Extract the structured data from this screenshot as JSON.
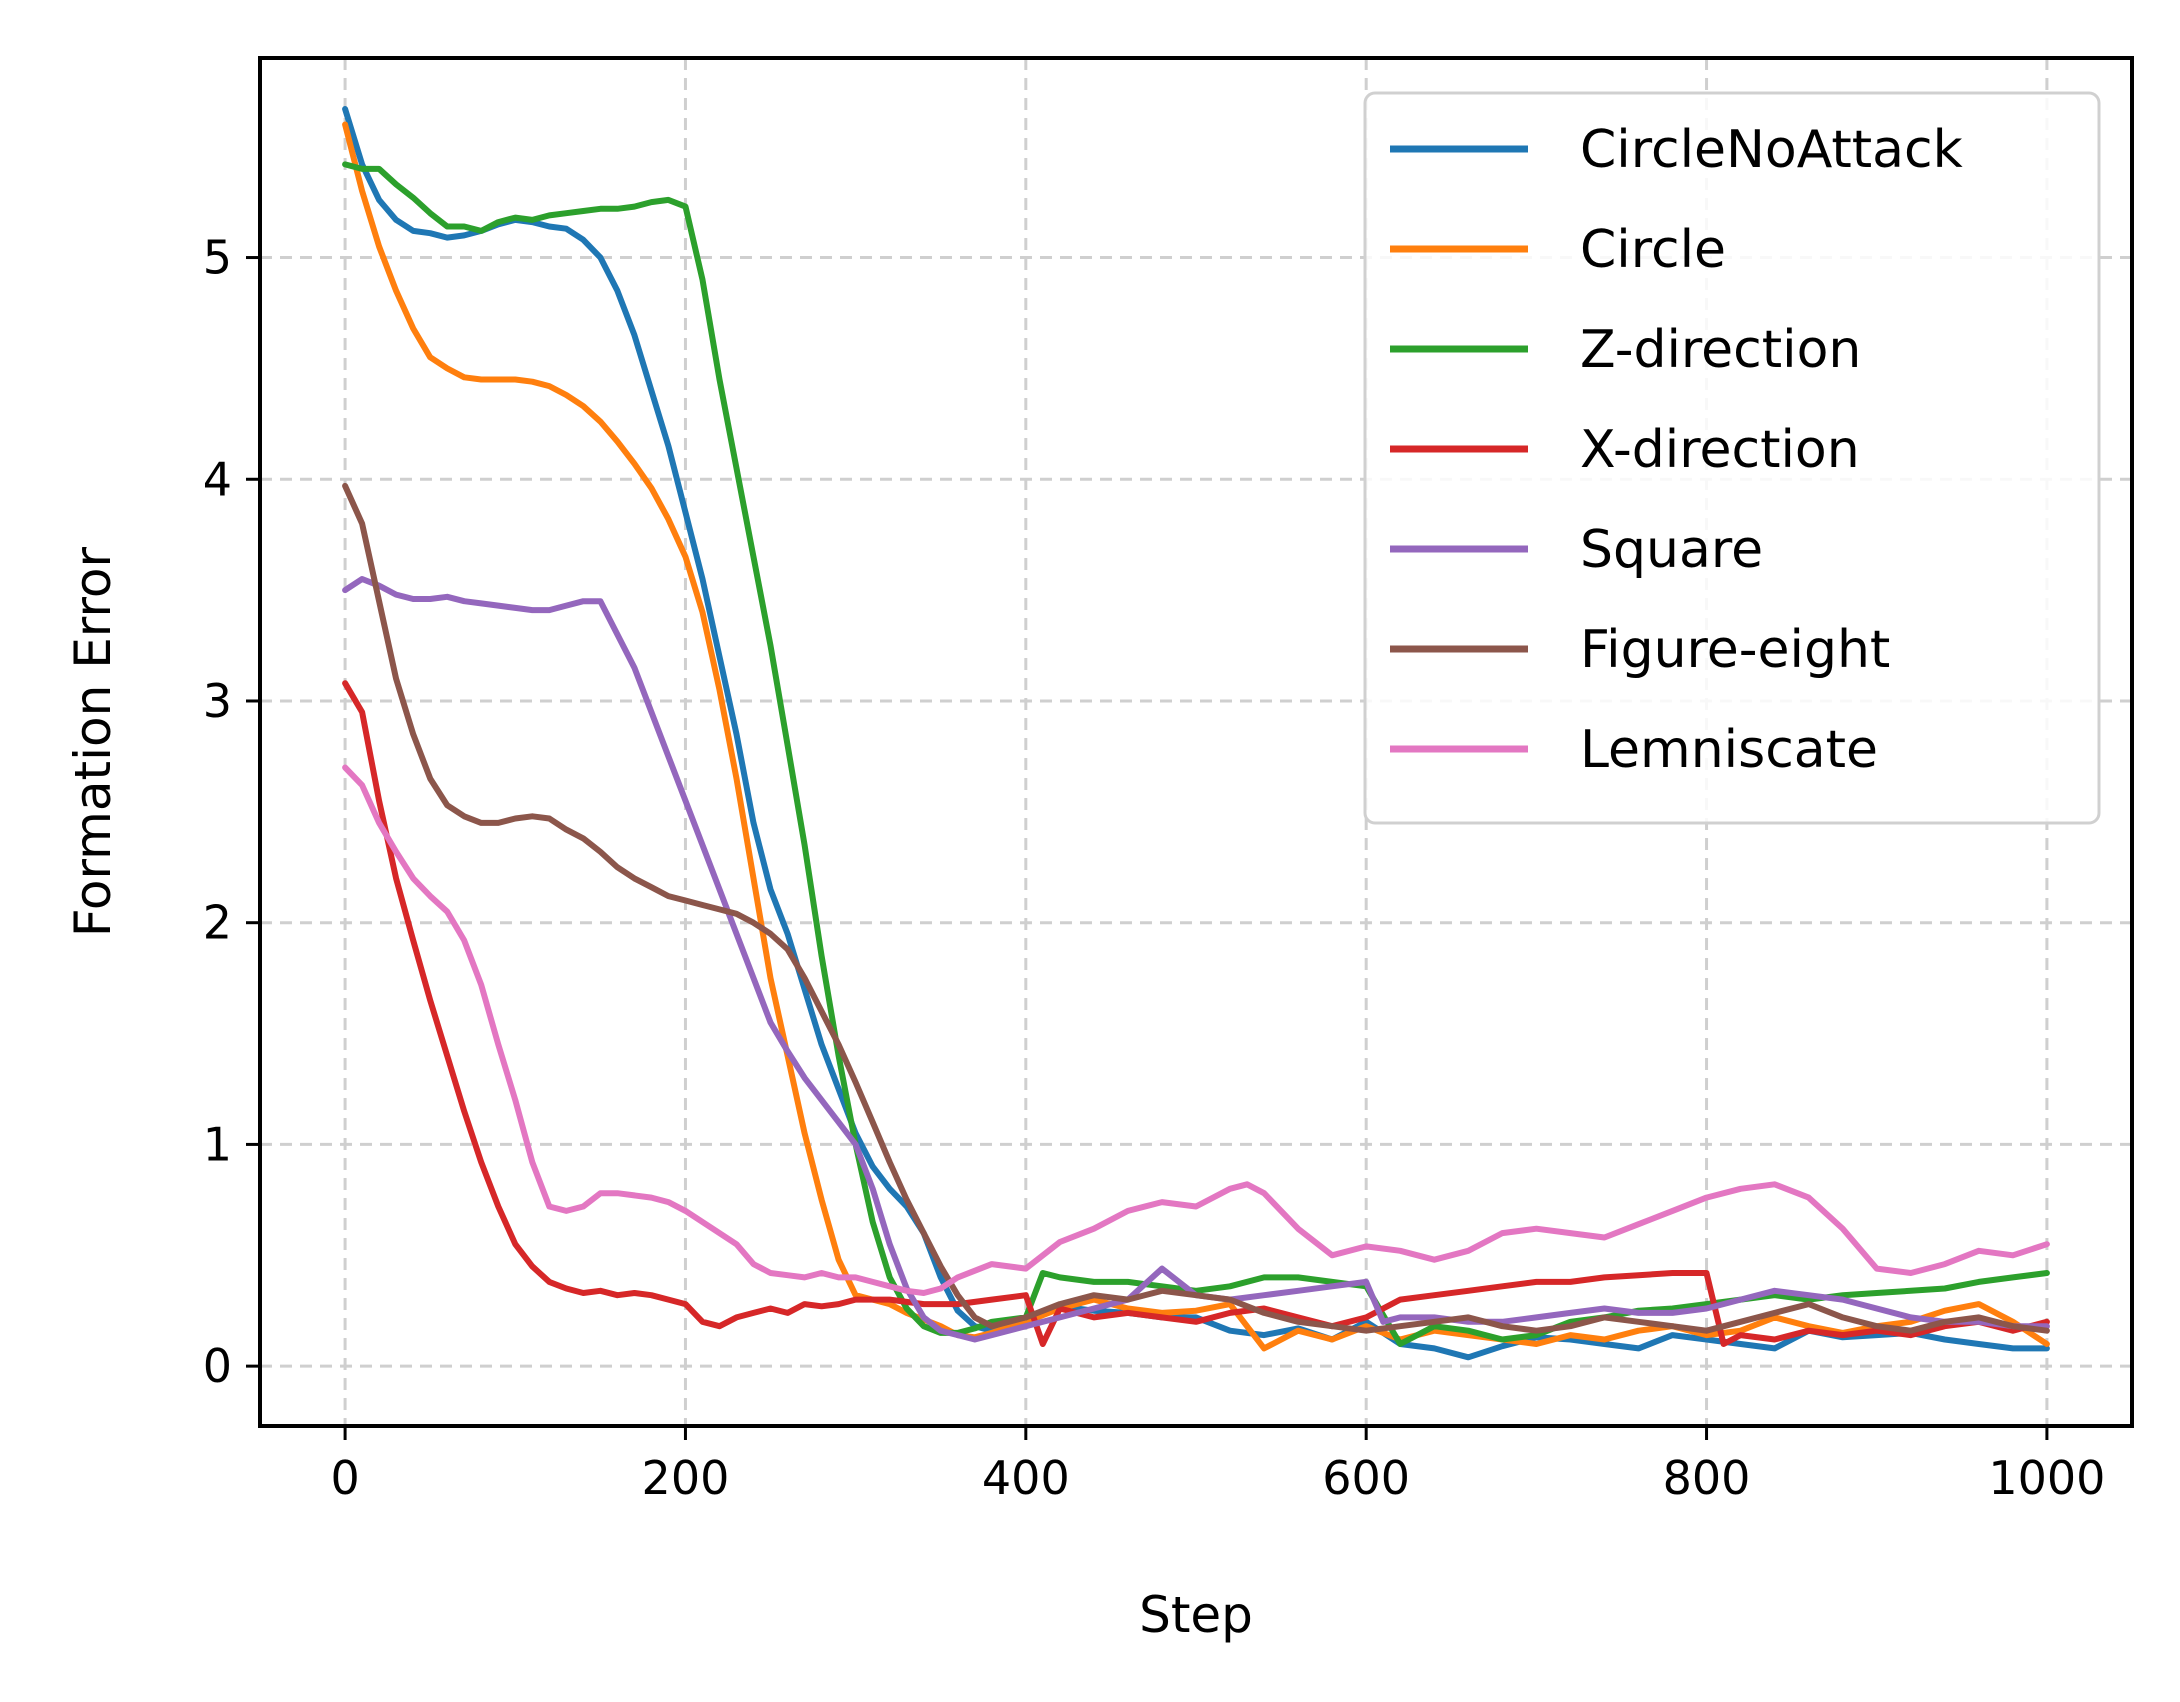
{
  "chart_data": {
    "type": "line",
    "title": "",
    "xlabel": "Step",
    "ylabel": "Formation Error",
    "xlim": [
      -50,
      1050
    ],
    "ylim": [
      -0.27,
      5.9
    ],
    "xticks": [
      0,
      200,
      400,
      600,
      800,
      1000
    ],
    "yticks": [
      0,
      1,
      2,
      3,
      4,
      5
    ],
    "grid": true,
    "legend": "top-right",
    "series": [
      {
        "name": "CircleNoAttack",
        "color": "#1f77b4",
        "x": [
          0,
          10,
          20,
          30,
          40,
          50,
          60,
          70,
          80,
          90,
          100,
          110,
          120,
          130,
          140,
          150,
          160,
          170,
          180,
          190,
          200,
          210,
          220,
          230,
          240,
          250,
          260,
          270,
          280,
          290,
          300,
          310,
          320,
          330,
          340,
          350,
          360,
          370,
          380,
          400,
          420,
          440,
          460,
          480,
          500,
          520,
          540,
          560,
          580,
          600,
          620,
          640,
          660,
          680,
          700,
          720,
          740,
          760,
          780,
          800,
          820,
          840,
          860,
          880,
          900,
          920,
          940,
          960,
          980,
          1000
        ],
        "y": [
          5.67,
          5.42,
          5.26,
          5.17,
          5.12,
          5.11,
          5.09,
          5.1,
          5.12,
          5.15,
          5.17,
          5.16,
          5.14,
          5.13,
          5.08,
          5.0,
          4.85,
          4.65,
          4.4,
          4.15,
          3.85,
          3.55,
          3.2,
          2.85,
          2.45,
          2.15,
          1.95,
          1.7,
          1.45,
          1.25,
          1.05,
          0.9,
          0.8,
          0.72,
          0.6,
          0.4,
          0.25,
          0.18,
          0.16,
          0.22,
          0.27,
          0.25,
          0.24,
          0.22,
          0.22,
          0.16,
          0.14,
          0.17,
          0.12,
          0.2,
          0.1,
          0.08,
          0.04,
          0.09,
          0.13,
          0.12,
          0.1,
          0.08,
          0.14,
          0.12,
          0.1,
          0.08,
          0.16,
          0.13,
          0.14,
          0.15,
          0.12,
          0.1,
          0.08,
          0.08
        ]
      },
      {
        "name": "Circle",
        "color": "#ff7f0e",
        "x": [
          0,
          10,
          20,
          30,
          40,
          50,
          60,
          70,
          80,
          90,
          100,
          110,
          120,
          130,
          140,
          150,
          160,
          170,
          180,
          190,
          200,
          210,
          220,
          230,
          240,
          250,
          260,
          270,
          280,
          290,
          300,
          310,
          320,
          330,
          340,
          350,
          360,
          370,
          380,
          400,
          420,
          440,
          460,
          480,
          500,
          520,
          540,
          560,
          580,
          600,
          620,
          640,
          660,
          680,
          700,
          720,
          740,
          760,
          780,
          800,
          820,
          840,
          860,
          880,
          900,
          920,
          940,
          960,
          980,
          1000
        ],
        "y": [
          5.6,
          5.3,
          5.05,
          4.85,
          4.68,
          4.55,
          4.5,
          4.46,
          4.45,
          4.45,
          4.45,
          4.44,
          4.42,
          4.38,
          4.33,
          4.26,
          4.17,
          4.07,
          3.96,
          3.82,
          3.65,
          3.4,
          3.05,
          2.65,
          2.2,
          1.75,
          1.4,
          1.05,
          0.75,
          0.48,
          0.32,
          0.3,
          0.28,
          0.24,
          0.21,
          0.18,
          0.14,
          0.13,
          0.15,
          0.2,
          0.26,
          0.3,
          0.26,
          0.24,
          0.25,
          0.28,
          0.08,
          0.16,
          0.12,
          0.18,
          0.12,
          0.16,
          0.14,
          0.12,
          0.1,
          0.14,
          0.12,
          0.16,
          0.18,
          0.14,
          0.16,
          0.22,
          0.18,
          0.15,
          0.18,
          0.2,
          0.25,
          0.28,
          0.2,
          0.1
        ]
      },
      {
        "name": "Z-direction",
        "color": "#2ca02c",
        "x": [
          0,
          10,
          20,
          30,
          40,
          50,
          60,
          70,
          80,
          90,
          100,
          110,
          120,
          130,
          140,
          150,
          160,
          170,
          180,
          190,
          200,
          210,
          220,
          230,
          240,
          250,
          260,
          270,
          280,
          290,
          300,
          310,
          320,
          330,
          340,
          350,
          360,
          370,
          380,
          400,
          410,
          420,
          440,
          460,
          480,
          500,
          520,
          540,
          560,
          580,
          600,
          620,
          640,
          660,
          680,
          700,
          720,
          740,
          760,
          780,
          800,
          820,
          840,
          860,
          880,
          900,
          920,
          940,
          960,
          980,
          1000
        ],
        "y": [
          5.42,
          5.4,
          5.4,
          5.33,
          5.27,
          5.2,
          5.14,
          5.14,
          5.12,
          5.16,
          5.18,
          5.17,
          5.19,
          5.2,
          5.21,
          5.22,
          5.22,
          5.23,
          5.25,
          5.26,
          5.23,
          4.9,
          4.45,
          4.05,
          3.65,
          3.25,
          2.8,
          2.35,
          1.85,
          1.4,
          1.0,
          0.65,
          0.4,
          0.26,
          0.18,
          0.15,
          0.15,
          0.17,
          0.2,
          0.22,
          0.42,
          0.4,
          0.38,
          0.38,
          0.36,
          0.34,
          0.36,
          0.4,
          0.4,
          0.38,
          0.36,
          0.1,
          0.18,
          0.16,
          0.12,
          0.14,
          0.2,
          0.22,
          0.25,
          0.26,
          0.28,
          0.3,
          0.32,
          0.3,
          0.32,
          0.33,
          0.34,
          0.35,
          0.38,
          0.4,
          0.42
        ]
      },
      {
        "name": "X-direction",
        "color": "#d62728",
        "x": [
          0,
          10,
          20,
          30,
          40,
          50,
          60,
          70,
          80,
          90,
          100,
          110,
          120,
          130,
          140,
          150,
          160,
          170,
          180,
          190,
          200,
          210,
          220,
          230,
          240,
          250,
          260,
          270,
          280,
          290,
          300,
          320,
          340,
          360,
          380,
          400,
          410,
          420,
          440,
          460,
          480,
          500,
          520,
          540,
          560,
          580,
          600,
          620,
          640,
          660,
          680,
          700,
          720,
          740,
          760,
          780,
          800,
          810,
          820,
          840,
          860,
          880,
          900,
          920,
          940,
          960,
          980,
          1000
        ],
        "y": [
          3.08,
          2.95,
          2.55,
          2.2,
          1.92,
          1.65,
          1.4,
          1.15,
          0.92,
          0.72,
          0.55,
          0.45,
          0.38,
          0.35,
          0.33,
          0.34,
          0.32,
          0.33,
          0.32,
          0.3,
          0.28,
          0.2,
          0.18,
          0.22,
          0.24,
          0.26,
          0.24,
          0.28,
          0.27,
          0.28,
          0.3,
          0.3,
          0.28,
          0.28,
          0.3,
          0.32,
          0.1,
          0.26,
          0.22,
          0.24,
          0.22,
          0.2,
          0.24,
          0.26,
          0.22,
          0.18,
          0.22,
          0.3,
          0.32,
          0.34,
          0.36,
          0.38,
          0.38,
          0.4,
          0.41,
          0.42,
          0.42,
          0.1,
          0.14,
          0.12,
          0.16,
          0.14,
          0.16,
          0.14,
          0.18,
          0.2,
          0.16,
          0.2
        ]
      },
      {
        "name": "Square",
        "color": "#9467bd",
        "x": [
          0,
          10,
          20,
          30,
          40,
          50,
          60,
          70,
          80,
          90,
          100,
          110,
          120,
          130,
          140,
          150,
          160,
          170,
          180,
          190,
          200,
          210,
          220,
          230,
          240,
          250,
          260,
          270,
          280,
          290,
          300,
          310,
          320,
          330,
          340,
          350,
          360,
          370,
          380,
          400,
          420,
          440,
          460,
          480,
          500,
          520,
          540,
          560,
          580,
          600,
          610,
          620,
          640,
          660,
          680,
          700,
          720,
          740,
          760,
          780,
          800,
          820,
          840,
          860,
          880,
          900,
          920,
          940,
          960,
          980,
          1000
        ],
        "y": [
          3.5,
          3.55,
          3.52,
          3.48,
          3.46,
          3.46,
          3.47,
          3.45,
          3.44,
          3.43,
          3.42,
          3.41,
          3.41,
          3.43,
          3.45,
          3.45,
          3.3,
          3.15,
          2.95,
          2.75,
          2.55,
          2.35,
          2.15,
          1.95,
          1.75,
          1.55,
          1.42,
          1.3,
          1.2,
          1.1,
          1.0,
          0.8,
          0.55,
          0.35,
          0.22,
          0.16,
          0.14,
          0.12,
          0.14,
          0.18,
          0.22,
          0.26,
          0.3,
          0.44,
          0.32,
          0.3,
          0.32,
          0.34,
          0.36,
          0.38,
          0.2,
          0.22,
          0.22,
          0.2,
          0.2,
          0.22,
          0.24,
          0.26,
          0.24,
          0.24,
          0.26,
          0.3,
          0.34,
          0.32,
          0.3,
          0.26,
          0.22,
          0.2,
          0.2,
          0.18,
          0.18
        ]
      },
      {
        "name": "Figure-eight",
        "color": "#8c564b",
        "x": [
          0,
          10,
          20,
          30,
          40,
          50,
          60,
          70,
          80,
          90,
          100,
          110,
          120,
          130,
          140,
          150,
          160,
          170,
          180,
          190,
          200,
          210,
          220,
          230,
          240,
          250,
          260,
          270,
          280,
          290,
          300,
          310,
          320,
          330,
          340,
          350,
          360,
          370,
          380,
          400,
          420,
          440,
          460,
          480,
          500,
          520,
          540,
          560,
          580,
          600,
          620,
          640,
          660,
          680,
          700,
          720,
          740,
          760,
          780,
          800,
          820,
          840,
          860,
          880,
          900,
          920,
          940,
          960,
          980,
          1000
        ],
        "y": [
          3.97,
          3.8,
          3.45,
          3.1,
          2.85,
          2.65,
          2.53,
          2.48,
          2.45,
          2.45,
          2.47,
          2.48,
          2.47,
          2.42,
          2.38,
          2.32,
          2.25,
          2.2,
          2.16,
          2.12,
          2.1,
          2.08,
          2.06,
          2.04,
          2.0,
          1.95,
          1.88,
          1.75,
          1.6,
          1.45,
          1.28,
          1.1,
          0.92,
          0.75,
          0.6,
          0.45,
          0.32,
          0.22,
          0.18,
          0.22,
          0.28,
          0.32,
          0.3,
          0.34,
          0.32,
          0.3,
          0.24,
          0.2,
          0.18,
          0.16,
          0.18,
          0.2,
          0.22,
          0.18,
          0.16,
          0.18,
          0.22,
          0.2,
          0.18,
          0.16,
          0.2,
          0.24,
          0.28,
          0.22,
          0.18,
          0.16,
          0.2,
          0.22,
          0.18,
          0.16
        ]
      },
      {
        "name": "Lemniscate",
        "color": "#e377c2",
        "x": [
          0,
          10,
          20,
          30,
          40,
          50,
          60,
          70,
          80,
          90,
          100,
          110,
          120,
          130,
          140,
          150,
          160,
          170,
          180,
          190,
          200,
          210,
          220,
          230,
          240,
          250,
          260,
          270,
          280,
          290,
          300,
          310,
          320,
          330,
          340,
          350,
          360,
          380,
          400,
          420,
          440,
          460,
          480,
          500,
          520,
          530,
          540,
          560,
          580,
          600,
          620,
          640,
          660,
          680,
          700,
          720,
          740,
          760,
          780,
          800,
          820,
          840,
          860,
          880,
          900,
          920,
          940,
          960,
          980,
          1000
        ],
        "y": [
          2.7,
          2.62,
          2.45,
          2.32,
          2.2,
          2.12,
          2.05,
          1.92,
          1.72,
          1.45,
          1.2,
          0.92,
          0.72,
          0.7,
          0.72,
          0.78,
          0.78,
          0.77,
          0.76,
          0.74,
          0.7,
          0.65,
          0.6,
          0.55,
          0.46,
          0.42,
          0.41,
          0.4,
          0.42,
          0.4,
          0.4,
          0.38,
          0.36,
          0.34,
          0.33,
          0.35,
          0.4,
          0.46,
          0.44,
          0.56,
          0.62,
          0.7,
          0.74,
          0.72,
          0.8,
          0.82,
          0.78,
          0.62,
          0.5,
          0.54,
          0.52,
          0.48,
          0.52,
          0.6,
          0.62,
          0.6,
          0.58,
          0.64,
          0.7,
          0.76,
          0.8,
          0.82,
          0.76,
          0.62,
          0.44,
          0.42,
          0.46,
          0.52,
          0.5,
          0.55
        ]
      }
    ]
  }
}
